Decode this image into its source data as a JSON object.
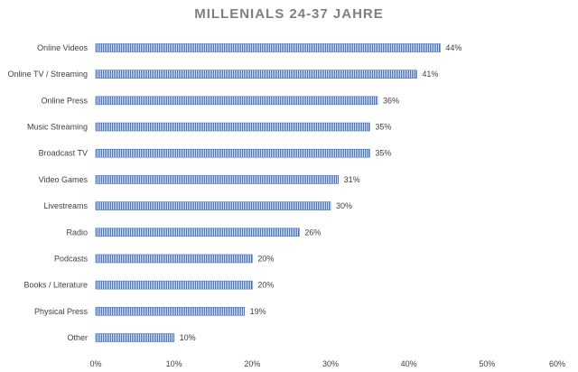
{
  "chart_data": {
    "type": "bar",
    "orientation": "horizontal",
    "title": "MILLENIALS 24-37 JAHRE",
    "xlabel": "",
    "ylabel": "",
    "categories": [
      "Online Videos",
      "Online TV / Streaming",
      "Online Press",
      "Music Streaming",
      "Broadcast TV",
      "Video Games",
      "Livestreams",
      "Radio",
      "Podcasts",
      "Books / Literature",
      "Physical Press",
      "Other"
    ],
    "values": [
      44,
      41,
      36,
      35,
      35,
      31,
      30,
      26,
      20,
      20,
      19,
      10
    ],
    "data_labels": [
      "44%",
      "41%",
      "36%",
      "35%",
      "35%",
      "31%",
      "30%",
      "26%",
      "20%",
      "20%",
      "19%",
      "10%"
    ],
    "xlim": [
      0,
      60
    ],
    "x_ticks": [
      0,
      10,
      20,
      30,
      40,
      50,
      60
    ],
    "x_tick_labels": [
      "0%",
      "10%",
      "20%",
      "30%",
      "40%",
      "50%",
      "60%"
    ],
    "grid": false,
    "legend": "none",
    "bar_color": "#4472c4",
    "bar_pattern": "vertical-stripes"
  }
}
